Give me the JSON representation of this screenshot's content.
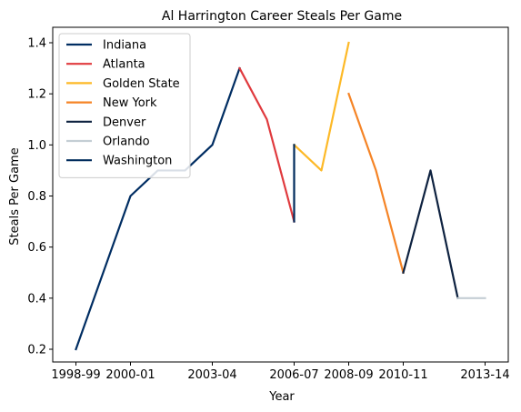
{
  "chart_data": {
    "type": "line",
    "title": "Al Harrington Career Steals Per Game",
    "xlabel": "Year",
    "ylabel": "Steals Per Game",
    "x_categories": [
      "1998-99",
      "1999-00",
      "2000-01",
      "2001-02",
      "2002-03",
      "2003-04",
      "2004-05",
      "2005-06",
      "2006-07",
      "2007-08",
      "2008-09",
      "2009-10",
      "2010-11",
      "2011-12",
      "2012-13",
      "2013-14"
    ],
    "x_tick_labels": [
      "1998-99",
      "2000-01",
      "2003-04",
      "2006-07",
      "2008-09",
      "2010-11",
      "2013-14"
    ],
    "ylim": [
      0.2,
      1.4
    ],
    "y_ticks": [
      0.2,
      0.4,
      0.6,
      0.8,
      1.0,
      1.2,
      1.4
    ],
    "y_tick_labels": [
      "0.2",
      "0.4",
      "0.6",
      "0.8",
      "1.0",
      "1.2",
      "1.4"
    ],
    "grid": false,
    "legend_position": "top-left",
    "series": [
      {
        "name": "Indiana",
        "color": "#002D62",
        "points": [
          [
            "1998-99",
            0.2
          ],
          [
            "2000-01",
            0.8
          ],
          [
            "2001-02",
            0.9
          ],
          [
            "2002-03",
            0.9
          ],
          [
            "2003-04",
            1.0
          ],
          [
            "2004-05",
            1.3
          ]
        ]
      },
      {
        "name": "Atlanta",
        "color": "#E03A3E",
        "points": [
          [
            "2004-05",
            1.3
          ],
          [
            "2005-06",
            1.1
          ],
          [
            "2006-07",
            0.7
          ]
        ]
      },
      {
        "name": "Golden State",
        "color": "#FDB927",
        "points": [
          [
            "2006-07",
            1.0
          ],
          [
            "2007-08",
            0.9
          ],
          [
            "2008-09",
            1.4
          ]
        ]
      },
      {
        "name": "New York",
        "color": "#F58426",
        "points": [
          [
            "2008-09",
            1.2
          ],
          [
            "2009-10",
            0.9
          ],
          [
            "2010-11",
            0.5
          ]
        ]
      },
      {
        "name": "Denver",
        "color": "#0E2240",
        "points": [
          [
            "2010-11",
            0.5
          ],
          [
            "2011-12",
            0.9
          ],
          [
            "2012-13",
            0.4
          ]
        ]
      },
      {
        "name": "Orlando",
        "color": "#C4CED4",
        "points": [
          [
            "2012-13",
            0.4
          ],
          [
            "2013-14",
            0.4
          ]
        ]
      },
      {
        "name": "Washington",
        "color": "#002B5C",
        "points": [
          [
            "2006-07",
            0.7
          ],
          [
            "2006-07",
            1.0
          ]
        ]
      }
    ]
  }
}
